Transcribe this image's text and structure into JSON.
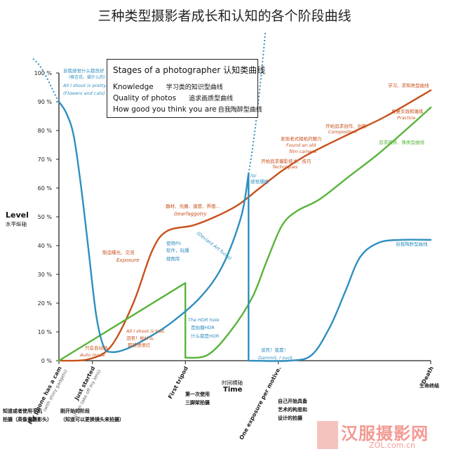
{
  "page": {
    "title": "三种类型摄影者成长和认知的各个阶段曲线"
  },
  "legend": {
    "title": "Stages of a photographer 认知类曲线",
    "items": [
      {
        "en": "Knowledge",
        "cn": "学习类的知识型曲线",
        "color": "#c8501a"
      },
      {
        "en": "Quality of photos",
        "cn": "追求画质型曲线",
        "color": "#58b43a"
      },
      {
        "en": "How good you think you are",
        "cn": "自我陶醉型曲线",
        "color": "#2e8fbf"
      }
    ]
  },
  "axes": {
    "y_title": "Level",
    "y_title_cn": "水平纵轴",
    "x_title": "Time",
    "x_title_cn": "时间横轴",
    "y_ticks": [
      "0 %",
      "10 %",
      "20 %",
      "30 %",
      "40 %",
      "50 %",
      "60 %",
      "70 %",
      "80 %",
      "90 %",
      "100 %"
    ]
  },
  "chart_data": {
    "type": "line",
    "title": "Stages of a photographer",
    "xlabel": "Time",
    "ylabel": "Level",
    "ylim": [
      0,
      100
    ],
    "x_milestones": [
      {
        "label": "My phone has a cam",
        "sub": "(with shiny gadgets)",
        "x": 0,
        "cn": [
          "知道或者使用手机",
          "拍摄（高像素摄影头）"
        ]
      },
      {
        "label": "Just started",
        "sub": "(I can take off my lens)",
        "x": 9,
        "cn": [
          "刚开始的阶段",
          "（知道可以更换镜头来拍摄）"
        ]
      },
      {
        "label": "First tripod",
        "sub": "",
        "x": 34,
        "cn": [
          "第一次使用",
          "三脚架拍摄"
        ]
      },
      {
        "label": "One exposure per motive.",
        "sub": "",
        "x": 59,
        "cn": [
          "自己开始具备",
          "艺术的构思和",
          "设计的拍摄"
        ]
      },
      {
        "label": "Death",
        "sub": "",
        "x": 100,
        "cn": [
          "生命终结"
        ]
      }
    ],
    "series": [
      {
        "name": "Knowledge",
        "color": "#c8501a",
        "points": [
          [
            0,
            0
          ],
          [
            8,
            0.5
          ],
          [
            14,
            5
          ],
          [
            20,
            20
          ],
          [
            25,
            38
          ],
          [
            29,
            45
          ],
          [
            36,
            47
          ],
          [
            42,
            50
          ],
          [
            48,
            54
          ],
          [
            54,
            60
          ],
          [
            60,
            66
          ],
          [
            66,
            71
          ],
          [
            72,
            75
          ],
          [
            80,
            80
          ],
          [
            88,
            85
          ],
          [
            100,
            94
          ]
        ]
      },
      {
        "name": "Quality of photos",
        "color": "#58b43a",
        "points": [
          [
            0,
            0
          ],
          [
            34,
            27
          ],
          [
            34,
            1
          ],
          [
            40,
            2
          ],
          [
            46,
            10
          ],
          [
            52,
            22
          ],
          [
            56,
            35
          ],
          [
            60,
            47
          ],
          [
            64,
            52
          ],
          [
            70,
            56
          ],
          [
            78,
            64
          ],
          [
            86,
            72
          ],
          [
            94,
            81
          ],
          [
            100,
            88
          ]
        ]
      },
      {
        "name": "How good you think you are",
        "color": "#2e8fbf",
        "points": [
          [
            0,
            90
          ],
          [
            2,
            86
          ],
          [
            4,
            78
          ],
          [
            6,
            60
          ],
          [
            8,
            38
          ],
          [
            10,
            16
          ],
          [
            12,
            5
          ],
          [
            14,
            3
          ],
          [
            18,
            4
          ],
          [
            24,
            8
          ],
          [
            30,
            13
          ],
          [
            38,
            22
          ],
          [
            44,
            33
          ],
          [
            49,
            50
          ],
          [
            51,
            65
          ],
          [
            51,
            0
          ],
          [
            62,
            0
          ],
          [
            68,
            2
          ],
          [
            73,
            12
          ],
          [
            77,
            24
          ],
          [
            81,
            36
          ],
          [
            86,
            41
          ],
          [
            92,
            42
          ],
          [
            100,
            42
          ]
        ]
      }
    ],
    "annotations": [
      {
        "text": "自我感觉什么都良好",
        "color": "#2e8fbf"
      },
      {
        "text": "（格言花、猫什么的）",
        "color": "#2e8fbf"
      },
      {
        "text": "All I shoot is pretty.",
        "color": "#2e8fbf"
      },
      {
        "text": "(Flowers and cats)",
        "color": "#2e8fbf"
      },
      {
        "text": "学习、求知类型曲线",
        "color": "#c8501a"
      },
      {
        "text": "反复实践和锤炼",
        "color": "#c8501a"
      },
      {
        "text": "Practice",
        "color": "#c8501a"
      },
      {
        "text": "开始追求创作、创新",
        "color": "#c8501a"
      },
      {
        "text": "Composition",
        "color": "#c8501a"
      },
      {
        "text": "发现老式相机的魅力",
        "color": "#c8501a"
      },
      {
        "text": "Found an old",
        "color": "#c8501a"
      },
      {
        "text": "film camera",
        "color": "#c8501a"
      },
      {
        "text": "追求画质、像质型曲线",
        "color": "#58b43a"
      },
      {
        "text": "开始追求摄影技术、技巧",
        "color": "#c8501a"
      },
      {
        "text": "Techniques",
        "color": "#c8501a"
      },
      {
        "text": "/p/",
        "color": "#2e8fbf"
      },
      {
        "text": "感觉爆棚",
        "color": "#2e8fbf"
      },
      {
        "text": "器材、光圈、速度、界面…",
        "color": "#c8501a"
      },
      {
        "text": "Gearfaggotry",
        "color": "#c8501a"
      },
      {
        "text": "(Deviant Art fucks)",
        "color": "#2e8fbf"
      },
      {
        "text": "使用PS",
        "color": "#2e8fbf"
      },
      {
        "text": "软件，玩爆",
        "color": "#2e8fbf"
      },
      {
        "text": "搜图库",
        "color": "#2e8fbf"
      },
      {
        "text": "制造曝光、交流",
        "color": "#c8501a"
      },
      {
        "text": "Exposure",
        "color": "#c8501a"
      },
      {
        "text": "自我陶醉型曲线",
        "color": "#2e8fbf"
      },
      {
        "text": "The HDR hole",
        "color": "#2e8fbf"
      },
      {
        "text": "是拍摄HDR",
        "color": "#2e8fbf"
      },
      {
        "text": "什么都是HDR",
        "color": "#2e8fbf"
      },
      {
        "text": "All I shoot is bad.",
        "color": "#c8501a"
      },
      {
        "text": "沮丧！拍什么",
        "color": "#c8501a"
      },
      {
        "text": "都感觉很烂",
        "color": "#c8501a"
      },
      {
        "text": "只会自动挡",
        "color": "#c8501a"
      },
      {
        "text": "Auto mode",
        "color": "#c8501a"
      },
      {
        "text": "该死！我靠！",
        "color": "#2e8fbf"
      },
      {
        "text": "Dammit, I suck",
        "color": "#2e8fbf"
      }
    ]
  },
  "watermark": {
    "text": "汉服摄影网",
    "url": "ZOL.com.cn"
  }
}
